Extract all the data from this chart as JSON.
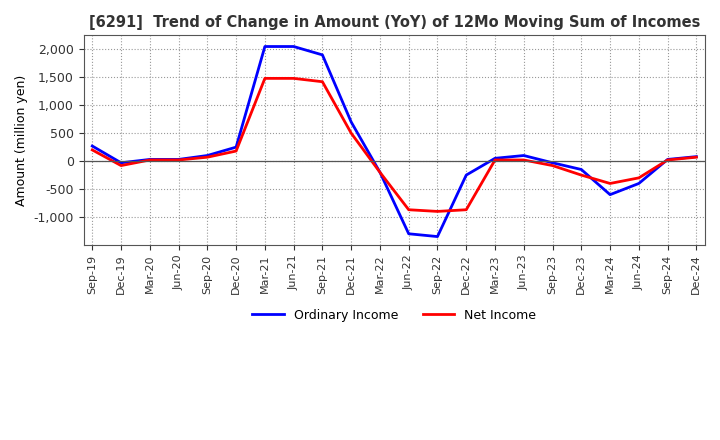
{
  "title": "[6291]  Trend of Change in Amount (YoY) of 12Mo Moving Sum of Incomes",
  "ylabel": "Amount (million yen)",
  "x_labels": [
    "Sep-19",
    "Dec-19",
    "Mar-20",
    "Jun-20",
    "Sep-20",
    "Dec-20",
    "Mar-21",
    "Jun-21",
    "Sep-21",
    "Dec-21",
    "Mar-22",
    "Jun-22",
    "Sep-22",
    "Dec-22",
    "Mar-23",
    "Jun-23",
    "Sep-23",
    "Dec-23",
    "Mar-24",
    "Jun-24",
    "Sep-24",
    "Dec-24"
  ],
  "ordinary_income": [
    270,
    -30,
    30,
    30,
    100,
    250,
    2050,
    2050,
    1900,
    700,
    -200,
    -1300,
    -1350,
    -250,
    50,
    100,
    -30,
    -150,
    -600,
    -400,
    30,
    80
  ],
  "net_income": [
    200,
    -80,
    20,
    20,
    70,
    180,
    1480,
    1480,
    1420,
    500,
    -200,
    -870,
    -900,
    -870,
    20,
    20,
    -80,
    -250,
    -400,
    -300,
    20,
    70
  ],
  "ordinary_color": "#0000FF",
  "net_color": "#FF0000",
  "ylim": [
    -1500,
    2250
  ],
  "yticks": [
    -1000,
    -500,
    0,
    500,
    1000,
    1500,
    2000
  ],
  "background_color": "#FFFFFF",
  "grid_color": "#999999"
}
